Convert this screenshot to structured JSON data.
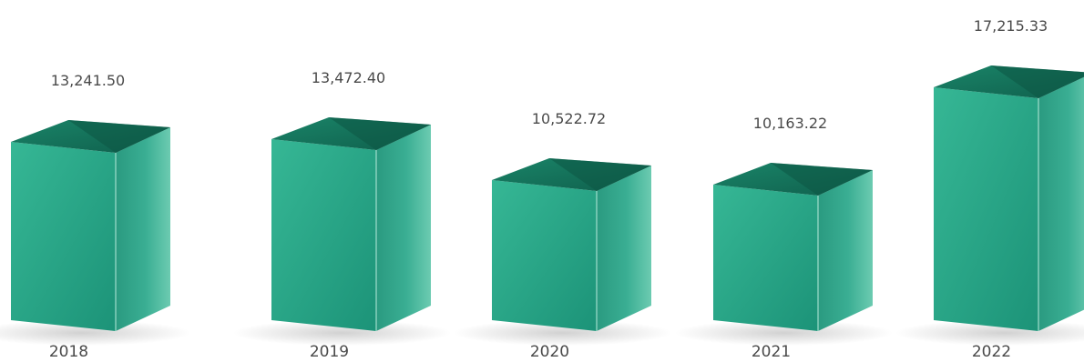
{
  "chart_data": {
    "type": "bar",
    "style": "3d-box",
    "categories": [
      "2018",
      "2019",
      "2020",
      "2021",
      "2022"
    ],
    "values": [
      13241.5,
      13472.4,
      10522.72,
      10163.22,
      17215.33
    ],
    "value_labels": [
      "13,241.50",
      "13,472.40",
      "10,522.72",
      "10,163.22",
      "17,215.33"
    ],
    "title": "",
    "xlabel": "",
    "ylabel": "",
    "ylim": [
      0,
      17215.33
    ],
    "grid": false,
    "legend": "none",
    "colors": {
      "front": "#22a385",
      "front_light": "#36b795",
      "side": "#2c9f85",
      "side_light": "#5fc3a8",
      "top": "#167a62",
      "top_dark": "#0e5e4b",
      "text": "#4a4a4a"
    }
  }
}
